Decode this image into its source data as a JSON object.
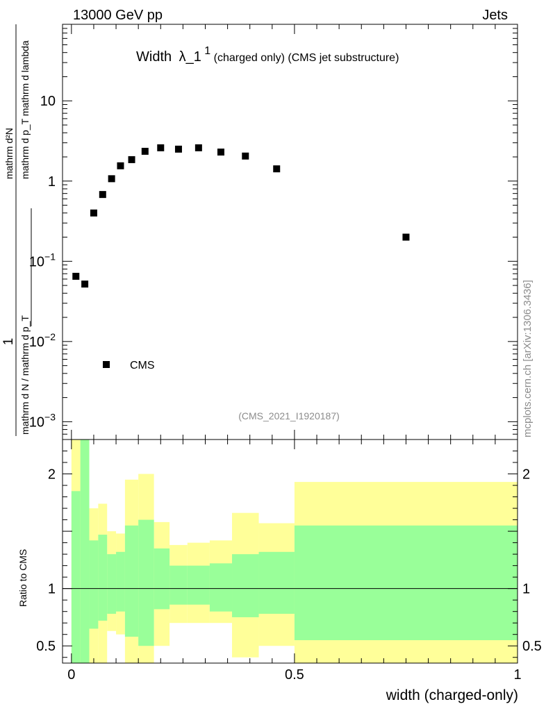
{
  "header": {
    "energy_label": "13000 GeV pp",
    "process_label": "Jets"
  },
  "main_title": {
    "prefix": "Width",
    "lambda": "λ_1",
    "sup": "1",
    "suffix": " (charged only) (CMS jet substructure)"
  },
  "y_axis": {
    "label_numerator": "mathrm d²N",
    "label_numerator_rest": "mathrm d p_T mathrm d lambda",
    "label_one": "1",
    "label_denominator": "mathrm d N / mathrm d p_T"
  },
  "ratio_axis_label": "Ratio to CMS",
  "x_axis_label": "width (charged-only)",
  "analysis_label": "(CMS_2021_I1920187)",
  "side_label": "mcplots.cern.ch [arXiv:1306.3436]",
  "legend": {
    "label": "CMS"
  },
  "colors": {
    "marker": "#000000",
    "band_inner": "#99ff99",
    "band_outer": "#ffff99",
    "frame": "#000000",
    "text_gray": "#8c8c8c"
  },
  "chart_data": [
    {
      "type": "scatter",
      "title": "Width λ_1^1 (charged only) (CMS jet substructure)",
      "xlabel": "width (charged-only)",
      "ylabel": "1/(dN/dpT) d²N/(dpT dλ)",
      "yscale": "log",
      "xlim": [
        -0.02,
        1.0
      ],
      "ylim": [
        0.0006,
        90
      ],
      "y_ticks": [
        {
          "v": 0.001,
          "base": "10",
          "exp": "−3"
        },
        {
          "v": 0.01,
          "base": "10",
          "exp": "−2"
        },
        {
          "v": 0.1,
          "base": "10",
          "exp": "−1"
        },
        {
          "v": 1,
          "base": "1",
          "exp": ""
        },
        {
          "v": 10,
          "base": "10",
          "exp": ""
        }
      ],
      "series": [
        {
          "name": "CMS",
          "x": [
            0.01,
            0.03,
            0.05,
            0.07,
            0.09,
            0.11,
            0.135,
            0.165,
            0.2,
            0.24,
            0.285,
            0.335,
            0.39,
            0.46,
            0.75
          ],
          "y": [
            0.065,
            0.052,
            0.4,
            0.68,
            1.07,
            1.55,
            1.85,
            2.35,
            2.6,
            2.5,
            2.6,
            2.3,
            2.05,
            1.42,
            0.2
          ]
        }
      ]
    },
    {
      "type": "area",
      "title": "Ratio to CMS",
      "ylabel": "Ratio to CMS",
      "xlim": [
        -0.02,
        1.0
      ],
      "ylim": [
        0.35,
        2.3
      ],
      "x_ticks": [
        0,
        0.5,
        1
      ],
      "x_tick_labels": [
        "0",
        "0.5",
        "1"
      ],
      "y_ticks": [
        0.5,
        1,
        2
      ],
      "y_tick_labels": [
        "0.5",
        "1",
        "2"
      ],
      "reference_line": 1,
      "bins": [
        {
          "x0": 0.0,
          "x1": 0.02,
          "in_lo": 0.2,
          "in_hi": 1.85,
          "out_lo": 0.2,
          "out_hi": 2.3
        },
        {
          "x0": 0.02,
          "x1": 0.04,
          "in_lo": 0.2,
          "in_hi": 2.3,
          "out_lo": 0.2,
          "out_hi": 2.3
        },
        {
          "x0": 0.04,
          "x1": 0.06,
          "in_lo": 0.65,
          "in_hi": 1.42,
          "out_lo": 0.2,
          "out_hi": 1.7
        },
        {
          "x0": 0.06,
          "x1": 0.08,
          "in_lo": 0.72,
          "in_hi": 1.47,
          "out_lo": 0.2,
          "out_hi": 1.74
        },
        {
          "x0": 0.08,
          "x1": 0.1,
          "in_lo": 0.78,
          "in_hi": 1.3,
          "out_lo": 0.63,
          "out_hi": 1.5
        },
        {
          "x0": 0.1,
          "x1": 0.12,
          "in_lo": 0.8,
          "in_hi": 1.32,
          "out_lo": 0.6,
          "out_hi": 1.48
        },
        {
          "x0": 0.12,
          "x1": 0.15,
          "in_lo": 0.58,
          "in_hi": 1.55,
          "out_lo": 0.2,
          "out_hi": 1.95
        },
        {
          "x0": 0.15,
          "x1": 0.185,
          "in_lo": 0.5,
          "in_hi": 1.6,
          "out_lo": 0.2,
          "out_hi": 2.0
        },
        {
          "x0": 0.185,
          "x1": 0.22,
          "in_lo": 0.82,
          "in_hi": 1.35,
          "out_lo": 0.5,
          "out_hi": 1.58
        },
        {
          "x0": 0.22,
          "x1": 0.26,
          "in_lo": 0.86,
          "in_hi": 1.2,
          "out_lo": 0.7,
          "out_hi": 1.38
        },
        {
          "x0": 0.26,
          "x1": 0.31,
          "in_lo": 0.86,
          "in_hi": 1.2,
          "out_lo": 0.7,
          "out_hi": 1.4
        },
        {
          "x0": 0.31,
          "x1": 0.36,
          "in_lo": 0.8,
          "in_hi": 1.22,
          "out_lo": 0.7,
          "out_hi": 1.42
        },
        {
          "x0": 0.36,
          "x1": 0.42,
          "in_lo": 0.75,
          "in_hi": 1.3,
          "out_lo": 0.4,
          "out_hi": 1.66
        },
        {
          "x0": 0.42,
          "x1": 0.5,
          "in_lo": 0.78,
          "in_hi": 1.32,
          "out_lo": 0.5,
          "out_hi": 1.57
        },
        {
          "x0": 0.5,
          "x1": 1.0,
          "in_lo": 0.55,
          "in_hi": 1.55,
          "out_lo": 0.2,
          "out_hi": 1.93
        }
      ]
    }
  ]
}
